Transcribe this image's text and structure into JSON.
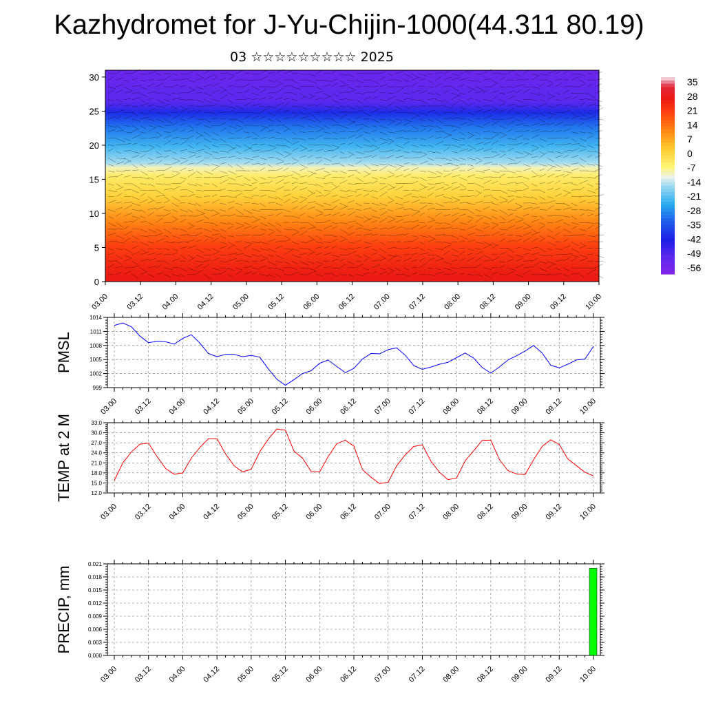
{
  "title": "Kazhydromet for J-Yu-Chijin-1000(44.311 80.19)",
  "subtitle": "03 ☆☆☆☆☆☆☆☆☆ 2025",
  "time_labels": [
    "03.00",
    "03.12",
    "04.00",
    "04.12",
    "05.00",
    "05.12",
    "06.00",
    "06.12",
    "07.00",
    "07.12",
    "08.00",
    "08.12",
    "09.00",
    "09.12",
    "10.00"
  ],
  "chart_data": [
    {
      "type": "heatmap",
      "name": "cross-section",
      "x_ticks": [
        "03.00",
        "03.12",
        "04.00",
        "04.12",
        "05.00",
        "05.12",
        "06.00",
        "06.12",
        "07.00",
        "07.12",
        "08.00",
        "08.12",
        "09.00",
        "09.12",
        "10.00"
      ],
      "y_ticks": [
        0,
        5,
        10,
        15,
        20,
        25,
        30
      ],
      "ylim": [
        0,
        31
      ],
      "colorbar_labels": [
        "35",
        "28",
        "21",
        "14",
        "7",
        "0",
        "-7",
        "-14",
        "-21",
        "-28",
        "-35",
        "-42",
        "-49",
        "-56"
      ],
      "colorbar_range": [
        -60,
        38
      ]
    },
    {
      "type": "line",
      "ylabel": "PMSL",
      "ylim": [
        999,
        1014
      ],
      "y_ticks": [
        999,
        1002,
        1005,
        1008,
        1011,
        1014
      ],
      "series_color": "#0000ff",
      "values": [
        1012.3,
        1012.8,
        1012,
        1010,
        1008.6,
        1008.9,
        1008.8,
        1008.3,
        1009.5,
        1010.3,
        1008.5,
        1006.3,
        1005.6,
        1006.1,
        1006.1,
        1005.6,
        1005.9,
        1005.5,
        1003,
        1000.8,
        999.5,
        1000.7,
        1002,
        1002.6,
        1004.2,
        1004.9,
        1003.5,
        1002.2,
        1003.1,
        1005.1,
        1006.3,
        1006.2,
        1007.1,
        1007.5,
        1005.9,
        1003.7,
        1002.9,
        1003.4,
        1004,
        1004.4,
        1005.4,
        1006.4,
        1005.3,
        1003.3,
        1002.1,
        1003.4,
        1004.9,
        1005.8,
        1006.8,
        1008,
        1006.4,
        1003.8,
        1003.2,
        1004,
        1004.9,
        1005.1,
        1007.8
      ]
    },
    {
      "type": "line",
      "ylabel": "TEMP at 2 M",
      "ylim": [
        12,
        33
      ],
      "y_ticks": [
        "12.0",
        "15.0",
        "18.0",
        "21.0",
        "24.0",
        "27.0",
        "30.0",
        "33.0"
      ],
      "series_color": "#ff0000",
      "values": [
        15.7,
        21,
        24.3,
        26.6,
        26.9,
        22.9,
        19.3,
        17.6,
        18,
        22.4,
        25.6,
        28.2,
        28.2,
        23.7,
        20.1,
        18.3,
        19.1,
        24.3,
        28.1,
        31.1,
        30.8,
        24.5,
        22.4,
        18.4,
        18.3,
        22.9,
        26.7,
        27.8,
        26,
        19,
        16.7,
        14.8,
        15.2,
        20.1,
        23.4,
        25.9,
        26.4,
        21.5,
        18.2,
        16,
        16.4,
        21.6,
        24.6,
        27.7,
        27.8,
        22,
        18.7,
        17.7,
        17.5,
        21.9,
        25.9,
        27.9,
        26.5,
        22.2,
        20.2,
        18.2,
        17.1
      ]
    },
    {
      "type": "bar",
      "ylabel": "PRECIP, mm",
      "ylim": [
        0,
        0.021
      ],
      "y_ticks": [
        "0.000",
        "0.003",
        "0.006",
        "0.009",
        "0.012",
        "0.015",
        "0.018",
        "0.021"
      ],
      "bar_color": "#00ff00",
      "bars": [
        {
          "x_hour": 168,
          "value": 0.02
        }
      ]
    }
  ]
}
